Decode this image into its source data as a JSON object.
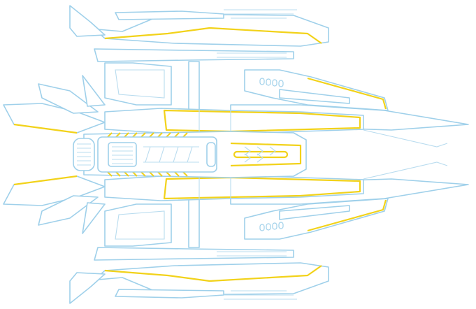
{
  "scene": {
    "subject": "starship-sprite",
    "orientation": "facing-right",
    "background_color": "#ffffff",
    "hull_fill_color": "#ffffff",
    "hull_outline_color": "#9fd0ea",
    "accent_trim_color": "#f2d21a"
  }
}
